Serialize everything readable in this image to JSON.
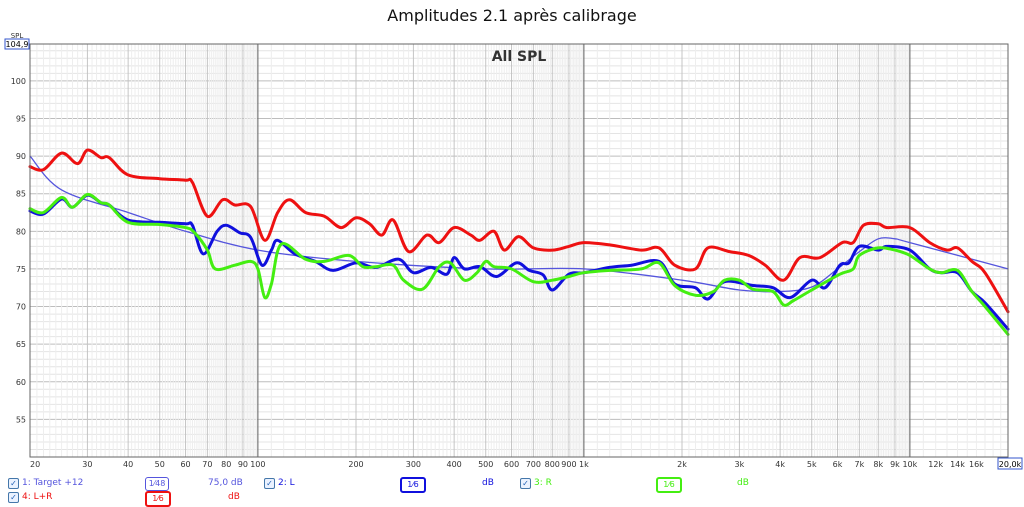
{
  "title": "Amplitudes 2.1 après calibrage",
  "chart_data": {
    "type": "line",
    "title": "Amplitudes 2.1 après calibrage",
    "overlay_title": "All SPL",
    "ylabel": "SPL",
    "y_top_value": "104,9",
    "x_end_value": "20,0k",
    "x_scale": "log",
    "xlim": [
      20,
      20000
    ],
    "ylim": [
      50,
      104.9
    ],
    "grid": true,
    "y_ticks": [
      "55",
      "60",
      "65",
      "70",
      "75",
      "80",
      "85",
      "90",
      "95",
      "100"
    ],
    "x_ticks": [
      {
        "v": 20,
        "t": "20"
      },
      {
        "v": 30,
        "t": "30"
      },
      {
        "v": 40,
        "t": "40"
      },
      {
        "v": 50,
        "t": "50"
      },
      {
        "v": 60,
        "t": "60"
      },
      {
        "v": 70,
        "t": "70"
      },
      {
        "v": 80,
        "t": "80"
      },
      {
        "v": 90,
        "t": "90"
      },
      {
        "v": 100,
        "t": "100"
      },
      {
        "v": 200,
        "t": "200"
      },
      {
        "v": 300,
        "t": "300"
      },
      {
        "v": 400,
        "t": "400"
      },
      {
        "v": 500,
        "t": "500"
      },
      {
        "v": 600,
        "t": "600"
      },
      {
        "v": 700,
        "t": "700"
      },
      {
        "v": 800,
        "t": "800"
      },
      {
        "v": 900,
        "t": "900"
      },
      {
        "v": 1000,
        "t": "1k"
      },
      {
        "v": 2000,
        "t": "2k"
      },
      {
        "v": 3000,
        "t": "3k"
      },
      {
        "v": 4000,
        "t": "4k"
      },
      {
        "v": 5000,
        "t": "5k"
      },
      {
        "v": 6000,
        "t": "6k"
      },
      {
        "v": 7000,
        "t": "7k"
      },
      {
        "v": 8000,
        "t": "8k"
      },
      {
        "v": 9000,
        "t": "9k"
      },
      {
        "v": 10000,
        "t": "10k"
      },
      {
        "v": 12000,
        "t": "12k"
      },
      {
        "v": 14000,
        "t": "14k"
      },
      {
        "v": 16000,
        "t": "16k"
      }
    ],
    "series": [
      {
        "name": "1: Target +12",
        "color": "#5555dd",
        "width": 1.3,
        "points": [
          [
            20,
            90.0
          ],
          [
            25,
            85.5
          ],
          [
            40,
            82.5
          ],
          [
            60,
            80.0
          ],
          [
            100,
            77.5
          ],
          [
            200,
            76.0
          ],
          [
            500,
            75.0
          ],
          [
            1000,
            75.0
          ],
          [
            2000,
            73.5
          ],
          [
            3000,
            72.2
          ],
          [
            4000,
            72.0
          ],
          [
            5000,
            72.6
          ],
          [
            6000,
            75.0
          ],
          [
            7000,
            77.3
          ],
          [
            8000,
            79.0
          ],
          [
            9000,
            79.0
          ],
          [
            10000,
            78.5
          ],
          [
            20000,
            75.0
          ]
        ]
      },
      {
        "name": "4: L+R",
        "color": "#ee1111",
        "width": 3,
        "points": [
          [
            20,
            88.6
          ],
          [
            22,
            88.2
          ],
          [
            25,
            90.4
          ],
          [
            28,
            89.0
          ],
          [
            30,
            90.8
          ],
          [
            33,
            89.8
          ],
          [
            35,
            89.8
          ],
          [
            40,
            87.5
          ],
          [
            50,
            87.0
          ],
          [
            60,
            86.8
          ],
          [
            63,
            86.5
          ],
          [
            70,
            82.0
          ],
          [
            78,
            84.2
          ],
          [
            85,
            83.5
          ],
          [
            95,
            83.3
          ],
          [
            105,
            78.8
          ],
          [
            115,
            82.5
          ],
          [
            125,
            84.2
          ],
          [
            140,
            82.5
          ],
          [
            160,
            82.0
          ],
          [
            180,
            80.5
          ],
          [
            200,
            81.8
          ],
          [
            220,
            81.0
          ],
          [
            240,
            79.5
          ],
          [
            260,
            81.5
          ],
          [
            290,
            77.3
          ],
          [
            330,
            79.5
          ],
          [
            360,
            78.5
          ],
          [
            400,
            80.5
          ],
          [
            450,
            79.5
          ],
          [
            480,
            78.8
          ],
          [
            530,
            80.0
          ],
          [
            570,
            77.5
          ],
          [
            630,
            79.3
          ],
          [
            700,
            77.8
          ],
          [
            800,
            77.5
          ],
          [
            900,
            78.0
          ],
          [
            1000,
            78.5
          ],
          [
            1200,
            78.2
          ],
          [
            1500,
            77.5
          ],
          [
            1700,
            77.8
          ],
          [
            1900,
            75.5
          ],
          [
            2200,
            75.0
          ],
          [
            2400,
            77.8
          ],
          [
            2800,
            77.3
          ],
          [
            3200,
            76.8
          ],
          [
            3600,
            75.5
          ],
          [
            4100,
            73.5
          ],
          [
            4600,
            76.5
          ],
          [
            5300,
            76.5
          ],
          [
            6200,
            78.5
          ],
          [
            6700,
            78.5
          ],
          [
            7200,
            80.8
          ],
          [
            8000,
            81.0
          ],
          [
            8500,
            80.5
          ],
          [
            10000,
            80.5
          ],
          [
            11500,
            78.5
          ],
          [
            13000,
            77.5
          ],
          [
            14000,
            77.8
          ],
          [
            15500,
            76.0
          ],
          [
            17000,
            74.5
          ],
          [
            20000,
            69.3
          ]
        ]
      },
      {
        "name": "2: L",
        "color": "#1010dd",
        "width": 3,
        "points": [
          [
            20,
            82.7
          ],
          [
            22,
            82.3
          ],
          [
            25,
            84.3
          ],
          [
            27,
            83.2
          ],
          [
            30,
            84.8
          ],
          [
            33,
            83.8
          ],
          [
            35,
            83.5
          ],
          [
            40,
            81.5
          ],
          [
            50,
            81.2
          ],
          [
            60,
            81.0
          ],
          [
            63,
            80.8
          ],
          [
            68,
            77.0
          ],
          [
            75,
            80.0
          ],
          [
            80,
            80.8
          ],
          [
            88,
            79.8
          ],
          [
            95,
            79.2
          ],
          [
            103,
            75.5
          ],
          [
            110,
            77.5
          ],
          [
            115,
            78.8
          ],
          [
            130,
            77.0
          ],
          [
            150,
            76.0
          ],
          [
            170,
            74.8
          ],
          [
            200,
            75.8
          ],
          [
            230,
            75.2
          ],
          [
            270,
            76.3
          ],
          [
            300,
            74.5
          ],
          [
            340,
            75.2
          ],
          [
            380,
            74.3
          ],
          [
            400,
            76.5
          ],
          [
            430,
            75.0
          ],
          [
            480,
            75.3
          ],
          [
            540,
            74.0
          ],
          [
            620,
            75.8
          ],
          [
            680,
            74.8
          ],
          [
            750,
            74.2
          ],
          [
            800,
            72.2
          ],
          [
            900,
            74.3
          ],
          [
            1000,
            74.5
          ],
          [
            1200,
            75.2
          ],
          [
            1400,
            75.5
          ],
          [
            1700,
            76.0
          ],
          [
            1900,
            73.0
          ],
          [
            2200,
            72.5
          ],
          [
            2400,
            71.0
          ],
          [
            2700,
            73.3
          ],
          [
            3300,
            72.8
          ],
          [
            3800,
            72.5
          ],
          [
            4300,
            71.2
          ],
          [
            5000,
            73.5
          ],
          [
            5500,
            72.5
          ],
          [
            6100,
            75.5
          ],
          [
            6500,
            75.8
          ],
          [
            7000,
            78.0
          ],
          [
            8000,
            77.5
          ],
          [
            8500,
            78.0
          ],
          [
            10000,
            77.5
          ],
          [
            11500,
            75.0
          ],
          [
            12500,
            74.5
          ],
          [
            14000,
            74.5
          ],
          [
            15500,
            72.0
          ],
          [
            17000,
            70.5
          ],
          [
            20000,
            67.0
          ]
        ]
      },
      {
        "name": "3: R",
        "color": "#44ee11",
        "width": 3,
        "points": [
          [
            20,
            83.0
          ],
          [
            22,
            82.5
          ],
          [
            25,
            84.5
          ],
          [
            27,
            83.2
          ],
          [
            30,
            84.9
          ],
          [
            33,
            83.8
          ],
          [
            35,
            83.5
          ],
          [
            40,
            81.2
          ],
          [
            50,
            80.9
          ],
          [
            60,
            80.5
          ],
          [
            64,
            79.8
          ],
          [
            70,
            77.5
          ],
          [
            74,
            75.0
          ],
          [
            85,
            75.5
          ],
          [
            95,
            76.0
          ],
          [
            100,
            75.0
          ],
          [
            105,
            71.2
          ],
          [
            110,
            73.0
          ],
          [
            118,
            78.3
          ],
          [
            140,
            76.3
          ],
          [
            160,
            76.0
          ],
          [
            190,
            76.8
          ],
          [
            210,
            75.3
          ],
          [
            230,
            75.3
          ],
          [
            260,
            75.5
          ],
          [
            280,
            73.5
          ],
          [
            320,
            72.3
          ],
          [
            360,
            75.3
          ],
          [
            390,
            75.8
          ],
          [
            430,
            73.5
          ],
          [
            470,
            74.5
          ],
          [
            500,
            76.0
          ],
          [
            530,
            75.3
          ],
          [
            600,
            75.0
          ],
          [
            700,
            73.3
          ],
          [
            800,
            73.5
          ],
          [
            900,
            74.0
          ],
          [
            1000,
            74.5
          ],
          [
            1200,
            74.8
          ],
          [
            1500,
            75.0
          ],
          [
            1700,
            75.8
          ],
          [
            1900,
            72.8
          ],
          [
            2200,
            71.5
          ],
          [
            2500,
            72.0
          ],
          [
            2700,
            73.5
          ],
          [
            3000,
            73.5
          ],
          [
            3300,
            72.3
          ],
          [
            3800,
            72.0
          ],
          [
            4100,
            70.2
          ],
          [
            4400,
            70.8
          ],
          [
            5000,
            72.2
          ],
          [
            6100,
            74.3
          ],
          [
            6700,
            75.0
          ],
          [
            7000,
            76.8
          ],
          [
            8000,
            77.8
          ],
          [
            9000,
            77.5
          ],
          [
            10000,
            76.8
          ],
          [
            11500,
            75.0
          ],
          [
            12500,
            74.5
          ],
          [
            14000,
            74.8
          ],
          [
            15500,
            72.0
          ],
          [
            17000,
            70.0
          ],
          [
            20000,
            66.3
          ]
        ]
      }
    ]
  },
  "legend": [
    {
      "label": "1: Target +12",
      "smoothing": "1⁄48",
      "value": "75,0 dB",
      "color": "#5555dd"
    },
    {
      "label": "2: L",
      "smoothing": "1⁄6",
      "value": "dB",
      "color": "#1010dd"
    },
    {
      "label": "3: R",
      "smoothing": "1⁄6",
      "value": "dB",
      "color": "#44ee11"
    },
    {
      "label": "4: L+R",
      "smoothing": "1⁄6",
      "value": "dB",
      "color": "#ee1111"
    }
  ],
  "checkmark": "✓"
}
